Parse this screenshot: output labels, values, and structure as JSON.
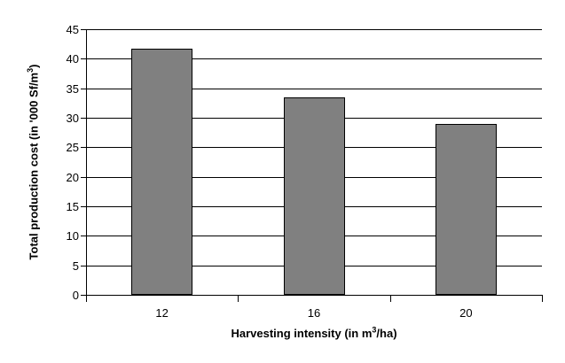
{
  "chart_data": {
    "type": "bar",
    "categories": [
      "12",
      "16",
      "20"
    ],
    "values": [
      41.7,
      33.5,
      29
    ],
    "ylim": [
      0,
      45
    ],
    "ytick_step": 5,
    "ytick_labels": [
      "0",
      "5",
      "10",
      "15",
      "20",
      "25",
      "30",
      "35",
      "40",
      "45"
    ],
    "title": "",
    "xlabel": {
      "pre": "Harvesting intensity (in m",
      "sup": "3",
      "post": "/ha)"
    },
    "ylabel": {
      "pre": "Total production cost (in '000 Sf/m",
      "sup": "3",
      "post": ")"
    },
    "grid": true,
    "legend_position": "none",
    "colors": {
      "bar_fill": "#808080",
      "bar_border": "#000000",
      "gridline": "#000000",
      "axis": "#000000",
      "text": "#000000",
      "background": "#ffffff"
    }
  }
}
